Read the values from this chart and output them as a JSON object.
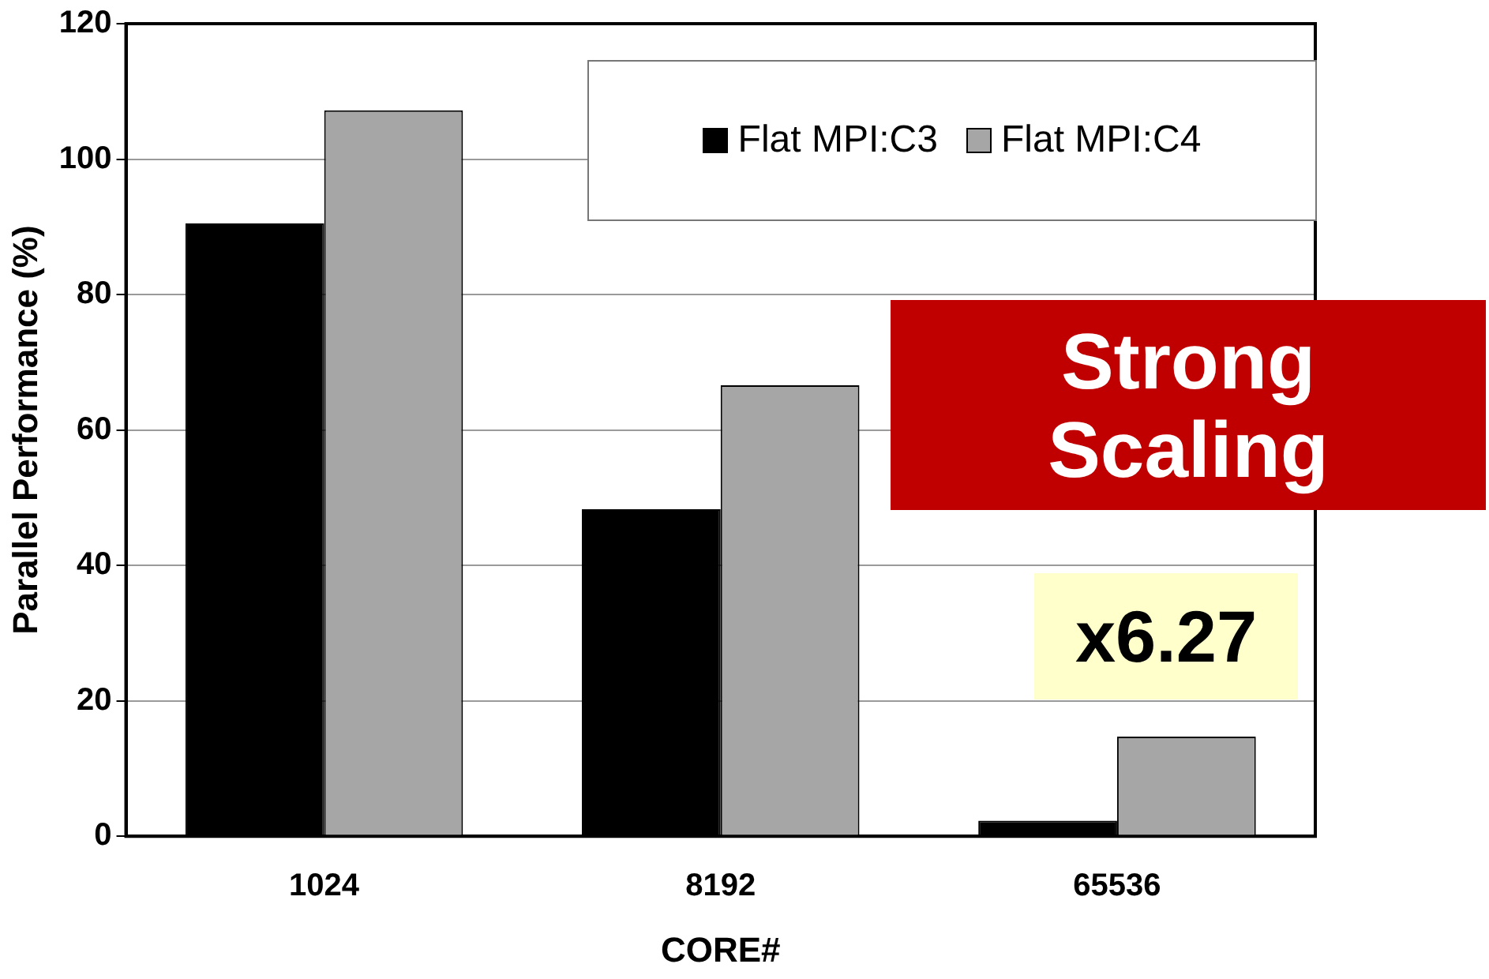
{
  "chart_data": {
    "type": "bar",
    "xlabel": "CORE#",
    "ylabel": "Parallel Performance (%)",
    "categories": [
      "1024",
      "8192",
      "65536"
    ],
    "series": [
      {
        "name": "Flat MPI:C3",
        "color": "#000000",
        "values": [
          90.5,
          48.3,
          2.3
        ]
      },
      {
        "name": "Flat MPI:C4",
        "color": "#a6a6a6",
        "values": [
          107.2,
          66.6,
          14.7
        ]
      }
    ],
    "ylim": [
      0,
      120
    ],
    "yticks": [
      0,
      20,
      40,
      60,
      80,
      100,
      120
    ],
    "grid": "y",
    "legend": "top right",
    "annotations": [
      "Strong Scaling",
      "x6.27"
    ]
  }
}
